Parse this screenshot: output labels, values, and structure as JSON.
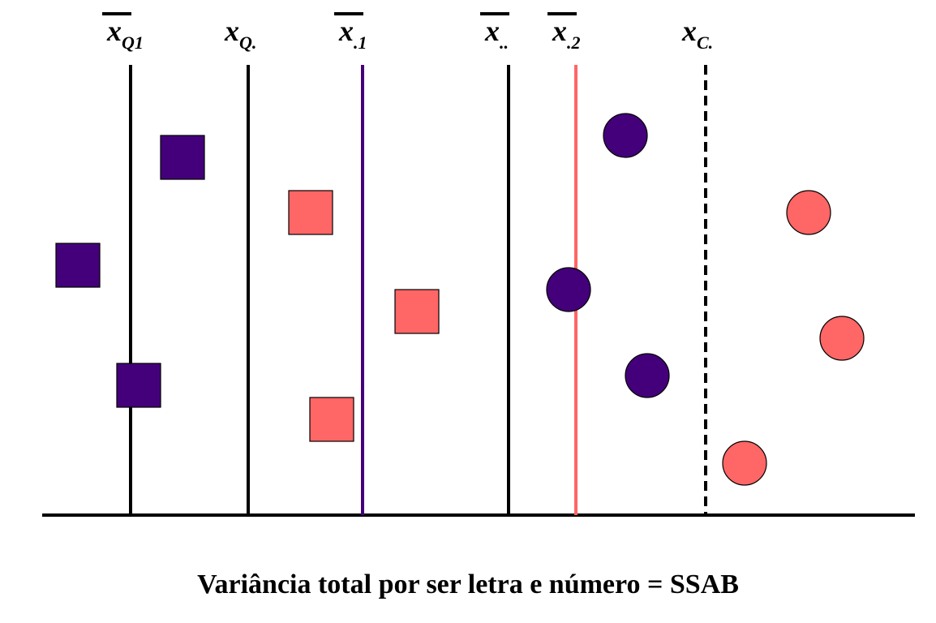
{
  "caption": "Variância total por ser letra e número = SSAB",
  "colors": {
    "purple": "#44007a",
    "salmon": "#ff6666",
    "black": "#000000"
  },
  "lines": [
    {
      "id": "xbar-q1",
      "main": "x",
      "sub": "Q1",
      "overbar": true,
      "style": "solid",
      "color": "#000000"
    },
    {
      "id": "x-q",
      "main": "x",
      "sub": "Q.",
      "overbar": false,
      "style": "solid",
      "color": "#000000"
    },
    {
      "id": "xbar-1",
      "main": "x",
      "sub": ".1",
      "overbar": true,
      "style": "solid",
      "color": "#44007a"
    },
    {
      "id": "xbar-grand",
      "main": "x",
      "sub": "..",
      "overbar": true,
      "style": "solid",
      "color": "#000000"
    },
    {
      "id": "xbar-2",
      "main": "x",
      "sub": ".2",
      "overbar": true,
      "style": "solid",
      "color": "#ff6666"
    },
    {
      "id": "x-c",
      "main": "x",
      "sub": "C.",
      "overbar": false,
      "style": "dashed",
      "color": "#000000"
    }
  ],
  "markers": [
    {
      "shape": "square",
      "color": "#44007a"
    },
    {
      "shape": "square",
      "color": "#44007a"
    },
    {
      "shape": "square",
      "color": "#44007a"
    },
    {
      "shape": "square",
      "color": "#ff6666"
    },
    {
      "shape": "square",
      "color": "#ff6666"
    },
    {
      "shape": "square",
      "color": "#ff6666"
    },
    {
      "shape": "circle",
      "color": "#44007a"
    },
    {
      "shape": "circle",
      "color": "#44007a"
    },
    {
      "shape": "circle",
      "color": "#44007a"
    },
    {
      "shape": "circle",
      "color": "#ff6666"
    },
    {
      "shape": "circle",
      "color": "#ff6666"
    },
    {
      "shape": "circle",
      "color": "#ff6666"
    }
  ]
}
